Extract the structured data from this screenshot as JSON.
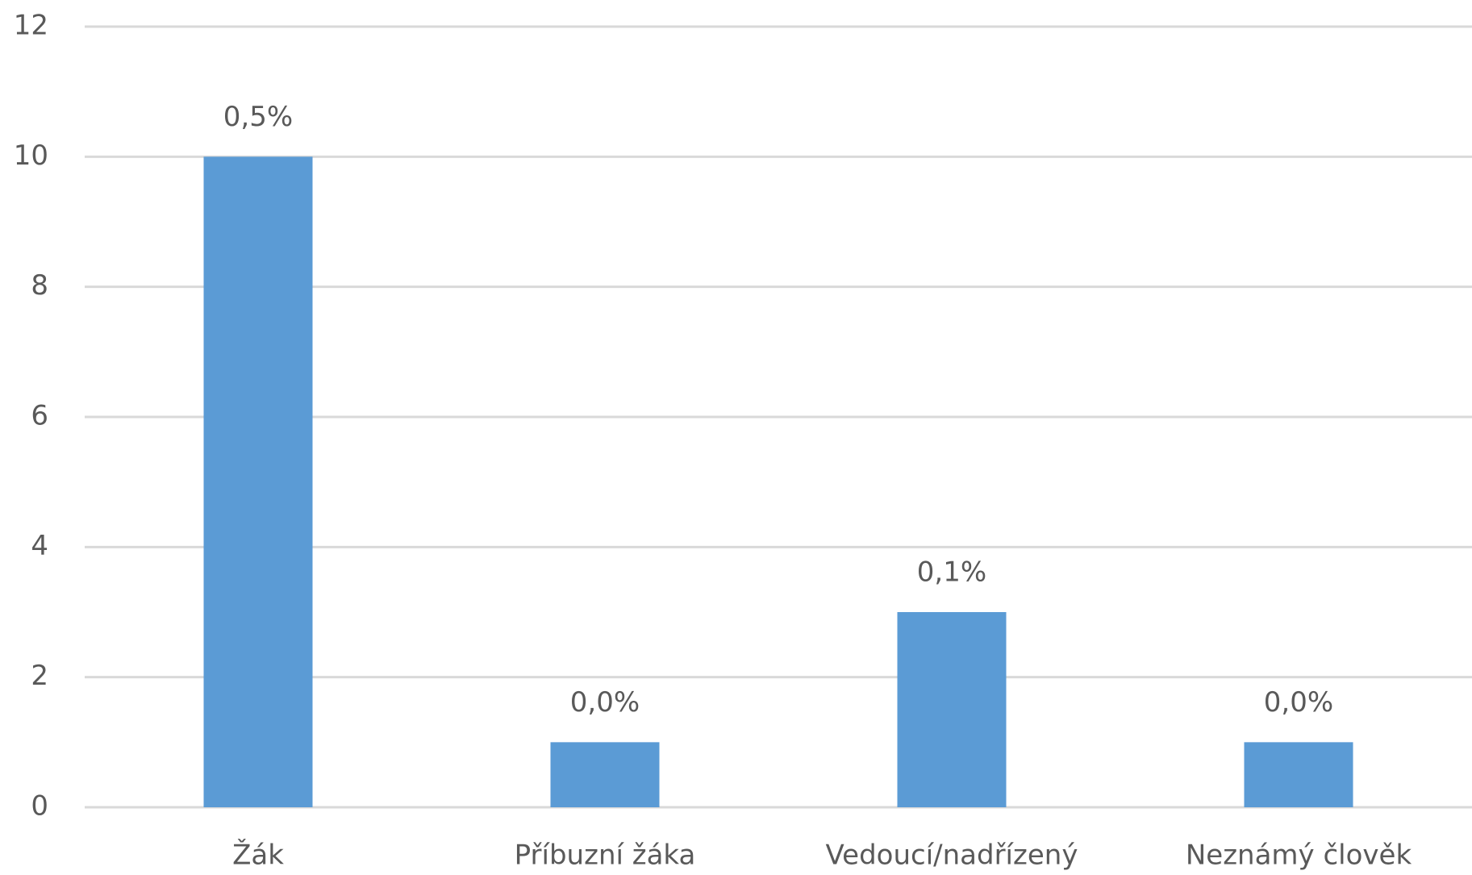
{
  "chart_data": {
    "type": "bar",
    "categories": [
      "Žák",
      "Příbuzní žáka",
      "Vedoucí/nadřízený",
      "Neznámý člověk"
    ],
    "values": [
      10,
      1,
      3,
      1
    ],
    "data_labels": [
      "0,5%",
      "0,0%",
      "0,1%",
      "0,0%"
    ],
    "color": "#5b9bd5",
    "ylim": [
      0,
      12
    ],
    "yticks": [
      0,
      2,
      4,
      6,
      8,
      10,
      12
    ],
    "grid": true
  }
}
